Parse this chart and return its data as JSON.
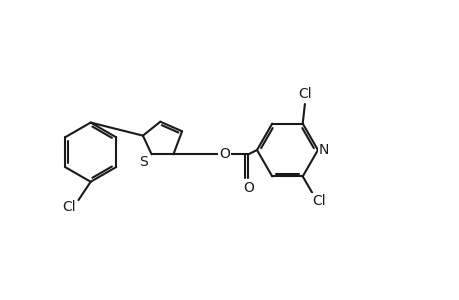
{
  "background_color": "#ffffff",
  "line_color": "#1a1a1a",
  "line_width": 1.5,
  "dbo": 0.06,
  "font_size": 10,
  "fig_width": 4.6,
  "fig_height": 3.0,
  "dpi": 100,
  "xlim": [
    -0.5,
    10.0
  ],
  "ylim": [
    2.0,
    6.5
  ]
}
